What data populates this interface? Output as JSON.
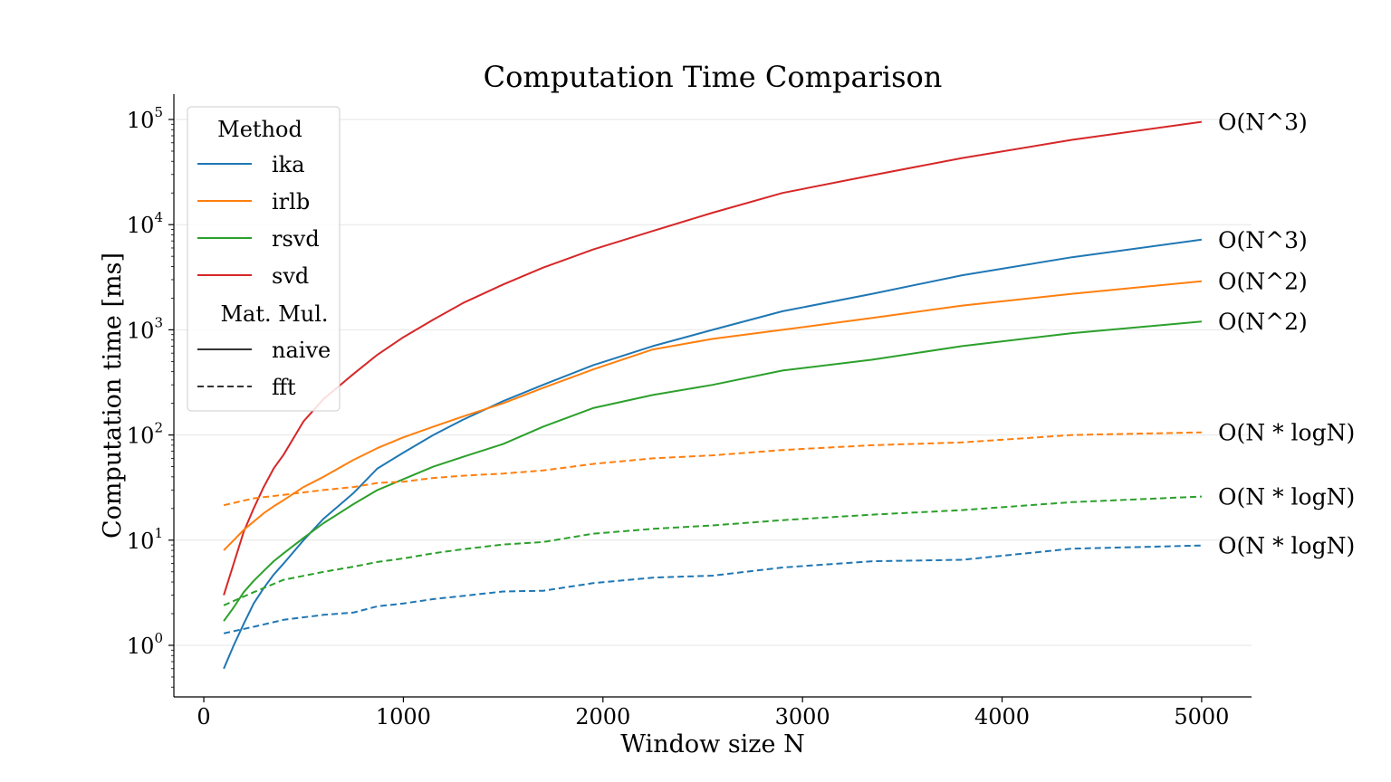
{
  "chart_data": {
    "type": "line",
    "title": "Computation Time Comparison",
    "xlabel": "Window size N",
    "ylabel": "Computation time [ms]",
    "xlim": [
      -150,
      5250
    ],
    "ylim_log10": [
      -0.45,
      1.28
    ],
    "yscale": "log",
    "grid": "horizontal",
    "legend_position": "top-left",
    "x_ticks": [
      0,
      1000,
      2000,
      3000,
      4000,
      5000
    ],
    "y_ticks": [
      {
        "base": "10",
        "exp": "0",
        "value": 1
      },
      {
        "base": "10",
        "exp": "1",
        "value": 10
      },
      {
        "base": "10",
        "exp": "2",
        "value": 100
      },
      {
        "base": "10",
        "exp": "3",
        "value": 1000
      },
      {
        "base": "10",
        "exp": "4",
        "value": 10000
      },
      {
        "base": "10",
        "exp": "5",
        "value": 100000
      }
    ],
    "legend": {
      "method_title": "Method",
      "matmul_title": "Mat. Mul.",
      "methods": [
        {
          "label": "ika",
          "color": "#1f77b4"
        },
        {
          "label": "irlb",
          "color": "#ff7f0e"
        },
        {
          "label": "rsvd",
          "color": "#2ca02c"
        },
        {
          "label": "svd",
          "color": "#d62728"
        }
      ],
      "styles": [
        {
          "label": "naive",
          "dash": "solid"
        },
        {
          "label": "fft",
          "dash": "dashed"
        }
      ]
    },
    "series": [
      {
        "method": "svd",
        "matmul": "naive",
        "color": "#d62728",
        "dash": "solid",
        "x": [
          100,
          150,
          200,
          250,
          300,
          350,
          400,
          500,
          600,
          750,
          870,
          1000,
          1150,
          1300,
          1500,
          1700,
          1950,
          2250,
          2550,
          2900,
          3350,
          3800,
          4350,
          5000
        ],
        "y": [
          3,
          6,
          12,
          20,
          32,
          48,
          65,
          135,
          220,
          380,
          580,
          850,
          1250,
          1800,
          2700,
          3900,
          5800,
          8700,
          13000,
          20000,
          29500,
          43000,
          64000,
          95000
        ],
        "annotation": "O(N^3)"
      },
      {
        "method": "ika",
        "matmul": "naive",
        "color": "#1f77b4",
        "dash": "solid",
        "x": [
          100,
          150,
          200,
          250,
          300,
          350,
          400,
          500,
          600,
          750,
          870,
          1000,
          1150,
          1300,
          1500,
          1700,
          1950,
          2250,
          2550,
          2900,
          3350,
          3800,
          4350,
          5000
        ],
        "y": [
          0.6,
          1.0,
          1.6,
          2.5,
          3.5,
          4.7,
          6.0,
          10,
          16,
          28,
          48,
          68,
          100,
          140,
          210,
          300,
          460,
          700,
          1000,
          1500,
          2200,
          3300,
          4900,
          7200
        ],
        "annotation": "O(N^3)"
      },
      {
        "method": "irlb",
        "matmul": "naive",
        "color": "#ff7f0e",
        "dash": "solid",
        "x": [
          100,
          150,
          200,
          250,
          300,
          350,
          400,
          500,
          600,
          750,
          870,
          1000,
          1150,
          1300,
          1500,
          1700,
          1950,
          2250,
          2550,
          2900,
          3350,
          3800,
          4350,
          5000
        ],
        "y": [
          8,
          10,
          12.5,
          15,
          18,
          21,
          24,
          32,
          40,
          58,
          75,
          95,
          120,
          150,
          200,
          280,
          420,
          650,
          820,
          1000,
          1300,
          1700,
          2200,
          2900
        ],
        "annotation": "O(N^2)"
      },
      {
        "method": "rsvd",
        "matmul": "naive",
        "color": "#2ca02c",
        "dash": "solid",
        "x": [
          100,
          150,
          200,
          250,
          300,
          350,
          400,
          500,
          600,
          750,
          870,
          1000,
          1150,
          1300,
          1500,
          1700,
          1950,
          2250,
          2550,
          2900,
          3350,
          3800,
          4350,
          5000
        ],
        "y": [
          1.7,
          2.3,
          3.2,
          4.1,
          5.1,
          6.3,
          7.5,
          10.5,
          14.5,
          22,
          30,
          38,
          50,
          62,
          82,
          120,
          180,
          240,
          300,
          410,
          520,
          700,
          930,
          1200
        ],
        "annotation": "O(N^2)"
      },
      {
        "method": "irlb",
        "matmul": "fft",
        "color": "#ff7f0e",
        "dash": "dashed",
        "x": [
          100,
          250,
          400,
          600,
          750,
          870,
          1000,
          1150,
          1300,
          1500,
          1700,
          1950,
          2250,
          2550,
          2900,
          3350,
          3800,
          4350,
          5000
        ],
        "y": [
          21.5,
          25,
          27,
          30,
          32,
          35,
          36,
          39,
          41,
          43,
          46,
          53,
          60,
          64,
          72,
          80,
          85,
          100,
          106
        ],
        "annotation": "O(N * logN)"
      },
      {
        "method": "rsvd",
        "matmul": "fft",
        "color": "#2ca02c",
        "dash": "dashed",
        "x": [
          100,
          250,
          400,
          600,
          750,
          870,
          1000,
          1150,
          1300,
          1500,
          1700,
          1950,
          2250,
          2550,
          2900,
          3350,
          3800,
          4350,
          5000
        ],
        "y": [
          2.4,
          3.2,
          4.2,
          5.0,
          5.6,
          6.2,
          6.7,
          7.5,
          8.2,
          9.1,
          9.6,
          11.5,
          12.8,
          13.8,
          15.5,
          17.5,
          19.3,
          23,
          26
        ],
        "annotation": "O(N * logN)"
      },
      {
        "method": "ika",
        "matmul": "fft",
        "color": "#1f77b4",
        "dash": "dashed",
        "x": [
          100,
          250,
          400,
          600,
          750,
          870,
          1000,
          1150,
          1300,
          1500,
          1700,
          1950,
          2250,
          2550,
          2900,
          3350,
          3800,
          4350,
          5000
        ],
        "y": [
          1.3,
          1.5,
          1.75,
          1.95,
          2.05,
          2.35,
          2.5,
          2.75,
          2.95,
          3.25,
          3.3,
          3.9,
          4.4,
          4.6,
          5.5,
          6.3,
          6.5,
          8.3,
          8.9
        ],
        "annotation": "O(N * logN)"
      }
    ]
  }
}
